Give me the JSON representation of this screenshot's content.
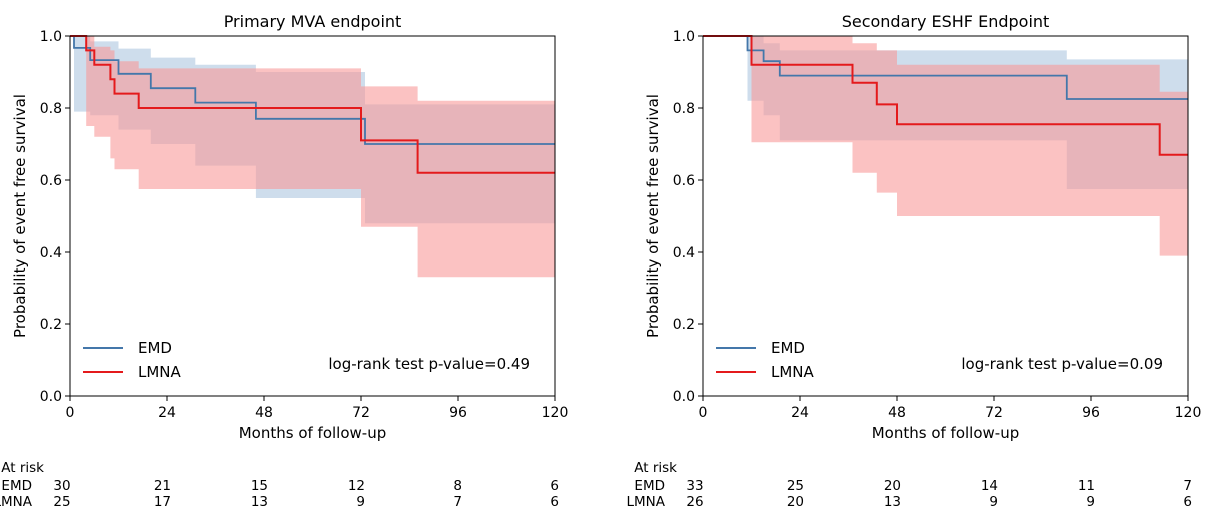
{
  "chart_data": [
    {
      "type": "line",
      "step": true,
      "title": "Primary MVA endpoint",
      "xlabel": "Months of follow-up",
      "ylabel": "Probability of event free survival",
      "xlim": [
        0,
        120
      ],
      "ylim": [
        0,
        1
      ],
      "xticks": [
        0,
        24,
        48,
        72,
        96,
        120
      ],
      "yticks": [
        "0.0",
        "0.2",
        "0.4",
        "0.6",
        "0.8",
        "1.0"
      ],
      "legend_position": "lower-left",
      "annotation": "log-rank test p-value=0.49",
      "series": [
        {
          "name": "EMD",
          "color": "#4477aa",
          "band_color": "#aec7df",
          "x": [
            0,
            1,
            5,
            12,
            20,
            31,
            46,
            73,
            120
          ],
          "y": [
            1.0,
            0.967,
            0.933,
            0.895,
            0.855,
            0.815,
            0.77,
            0.7,
            0.7
          ],
          "ci_upper": [
            1.0,
            1.0,
            0.985,
            0.965,
            0.94,
            0.92,
            0.9,
            0.81,
            0.85
          ],
          "ci_lower": [
            1.0,
            0.79,
            0.78,
            0.74,
            0.7,
            0.64,
            0.55,
            0.48,
            0.48
          ]
        },
        {
          "name": "LMNA",
          "color": "#e41a1c",
          "band_color": "#f99a9a",
          "x": [
            0,
            4,
            6,
            10,
            11,
            17,
            72,
            86,
            120
          ],
          "y": [
            1.0,
            0.96,
            0.92,
            0.88,
            0.84,
            0.8,
            0.71,
            0.62,
            0.62
          ],
          "ci_upper": [
            1.0,
            1.0,
            0.97,
            0.96,
            0.93,
            0.91,
            0.86,
            0.82,
            0.82
          ],
          "ci_lower": [
            1.0,
            0.75,
            0.72,
            0.66,
            0.63,
            0.575,
            0.47,
            0.33,
            0.33
          ]
        }
      ],
      "at_risk": {
        "header": "At risk",
        "rows": [
          {
            "label": "EMD",
            "values": [
              "30",
              "21",
              "15",
              "12",
              "8",
              "6"
            ]
          },
          {
            "label": "LMNA",
            "values": [
              "25",
              "17",
              "13",
              "9",
              "7",
              "6"
            ]
          }
        ]
      }
    },
    {
      "type": "line",
      "step": true,
      "title": "Secondary ESHF Endpoint",
      "xlabel": "Months of follow-up",
      "ylabel": "Probability of event free survival",
      "xlim": [
        0,
        120
      ],
      "ylim": [
        0,
        1
      ],
      "xticks": [
        0,
        24,
        48,
        72,
        96,
        120
      ],
      "yticks": [
        "0.0",
        "0.2",
        "0.4",
        "0.6",
        "0.8",
        "1.0"
      ],
      "legend_position": "lower-left",
      "annotation": "log-rank test p-value=0.09",
      "series": [
        {
          "name": "EMD",
          "color": "#4477aa",
          "band_color": "#aec7df",
          "x": [
            0,
            11,
            15,
            19,
            29,
            90,
            120
          ],
          "y": [
            1.0,
            0.96,
            0.93,
            0.89,
            0.89,
            0.825,
            0.825
          ],
          "ci_upper": [
            1.0,
            1.0,
            0.98,
            0.96,
            0.96,
            0.935,
            0.935
          ],
          "ci_lower": [
            1.0,
            0.82,
            0.78,
            0.71,
            0.71,
            0.575,
            0.575
          ]
        },
        {
          "name": "LMNA",
          "color": "#e41a1c",
          "band_color": "#f99a9a",
          "x": [
            0,
            12,
            37,
            43,
            48,
            113,
            120
          ],
          "y": [
            1.0,
            0.92,
            0.87,
            0.81,
            0.755,
            0.67,
            0.67
          ],
          "ci_upper": [
            1.0,
            1.0,
            0.98,
            0.96,
            0.92,
            0.845,
            0.845
          ],
          "ci_lower": [
            1.0,
            0.705,
            0.62,
            0.565,
            0.5,
            0.39,
            0.39
          ]
        }
      ],
      "at_risk": {
        "header": "At risk",
        "rows": [
          {
            "label": "EMD",
            "values": [
              "33",
              "25",
              "20",
              "14",
              "11",
              "7"
            ]
          },
          {
            "label": "LMNA",
            "values": [
              "26",
              "20",
              "13",
              "9",
              "9",
              "6"
            ]
          }
        ]
      }
    }
  ]
}
